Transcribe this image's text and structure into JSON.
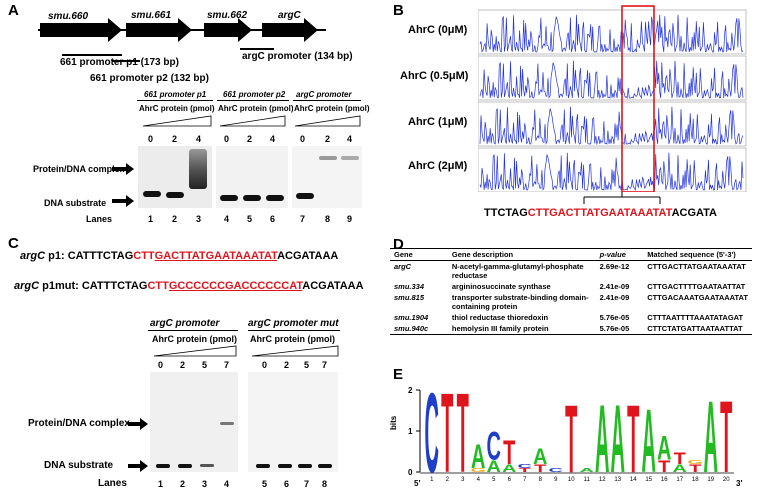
{
  "panels": {
    "a": "A",
    "b": "B",
    "c": "C",
    "d": "D",
    "e": "E"
  },
  "panelA": {
    "genes": [
      "smu.660",
      "smu.661",
      "smu.662",
      "argC"
    ],
    "promoters": {
      "p1": "661 promoter p1 (173 bp)",
      "p2": "661 promoter p2 (132 bp)",
      "argc": "argC promoter (134 bp)"
    },
    "gel_headers": [
      "661 promoter p1",
      "661 promoter p2",
      "argC promoter"
    ],
    "protein_label": "AhrC protein (pmol)",
    "amounts": [
      "0",
      "2",
      "4"
    ],
    "complex_label": "Protein/DNA complex",
    "substrate_label": "DNA substrate",
    "lanes_label": "Lanes",
    "lanes": [
      "1",
      "2",
      "3",
      "4",
      "5",
      "6",
      "7",
      "8",
      "9"
    ]
  },
  "panelB": {
    "conditions": [
      "AhrC (0μM)",
      "AhrC (0.5μM)",
      "AhrC (1μM)",
      "AhrC (2μM)"
    ],
    "seq_prefix": "TTCTAG",
    "seq_red": "CTTGACTTATGAATAAATAT",
    "seq_suffix": "ACGATA"
  },
  "panelC": {
    "row1_label": "argC",
    "row1_tag": " p1:",
    "row1_prefix": "CATTTCTAG",
    "row1_red1": "CTT",
    "row1_red2": "GACTTATGAATAAATAT",
    "row1_suffix": "ACGATAAA",
    "row2_label": "argC",
    "row2_tag": " p1mut:",
    "row2_prefix": "CATTTCTAG",
    "row2_red1": "CTT",
    "row2_red2": "GCCCCCCGACCCCCCAT",
    "row2_suffix": "ACGATAAA",
    "gel1_header": "argC  promoter",
    "gel2_header": "argC  promoter mut",
    "protein_label": "AhrC protein (pmol)",
    "amounts": [
      "0",
      "2",
      "5",
      "7"
    ],
    "complex_label": "Protein/DNA complex",
    "substrate_label": "DNA substrate",
    "lanes_label": "Lanes",
    "lanes": [
      "1",
      "2",
      "3",
      "4",
      "5",
      "6",
      "7",
      "8"
    ]
  },
  "panelD": {
    "headers": [
      "Gene",
      "Gene description",
      "p-value",
      "Matched sequence    (5'-3')"
    ],
    "rows": [
      [
        "argC",
        "N-acetyl-gamma-glutamyl-phosphate reductase",
        "2.69e-12",
        "CTTGACTTATGAATAAATAT"
      ],
      [
        "smu.334",
        "argininosuccinate synthase",
        "2.41e-09",
        "CTTGACTTTTGAATAATTAT"
      ],
      [
        "smu.815",
        "transporter substrate-binding domain-containing protein",
        "2.41e-09",
        "CTTGACAAATGAATAAATAT"
      ],
      [
        "smu.1904",
        "thiol reductase thioredoxin",
        "5.76e-05",
        "CTTTAATTTTAAATATAGAT"
      ],
      [
        "smu.940c",
        "hemolysin III family protein",
        "5.76e-05",
        "CTTCTATGATTAATAATTAT"
      ]
    ]
  },
  "panelE": {
    "ylabel": "bits",
    "yticks": [
      "0",
      "1",
      "2"
    ],
    "positions": [
      "1",
      "2",
      "3",
      "4",
      "5",
      "6",
      "7",
      "8",
      "9",
      "10",
      "11",
      "12",
      "13",
      "14",
      "15",
      "16",
      "17",
      "18",
      "19",
      "20"
    ],
    "end5": "5′",
    "end3": "3′",
    "colors": {
      "A": "#22bb22",
      "C": "#1f3fc8",
      "G": "#f2a81c",
      "T": "#e0141c"
    }
  }
}
